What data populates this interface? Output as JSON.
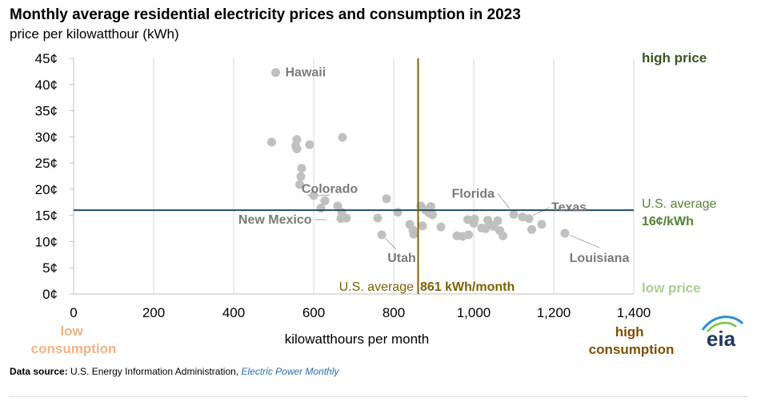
{
  "header": {
    "title": "Monthly average residential electricity prices and consumption in 2023",
    "subtitle": "price per kilowatthour (kWh)"
  },
  "source": {
    "label": "Data source:",
    "text": "U.S. Energy Information Administration,",
    "publication": "Electric Power Monthly"
  },
  "logo": {
    "text": "eia",
    "icon": "eia-logo"
  },
  "colors": {
    "points": "#c0c0c0",
    "label_text": "#7a7a7a",
    "avg_price_line": "#1f4e5f",
    "avg_consumption_line": "#7f6000",
    "high_price": "#375623",
    "us_avg_price_label": "#548235",
    "us_avg_price_value": "#548235",
    "low_price": "#a9d18e",
    "low_consumption": "#f4b183",
    "high_consumption": "#7f4f00"
  },
  "chart_data": {
    "type": "scatter",
    "title": "Monthly average residential electricity prices and consumption in 2023",
    "subtitle": "price per kilowatthour (kWh)",
    "xlabel": "kilowatthours per month",
    "ylabel": "",
    "xlim": [
      0,
      1400
    ],
    "ylim": [
      0,
      45
    ],
    "x_ticks": [
      "0",
      "200",
      "400",
      "600",
      "800",
      "1,000",
      "1,200",
      "1,400"
    ],
    "x_tick_values": [
      0,
      200,
      400,
      600,
      800,
      1000,
      1200,
      1400
    ],
    "y_ticks": [
      "0¢",
      "5¢",
      "10¢",
      "15¢",
      "20¢",
      "25¢",
      "30¢",
      "35¢",
      "40¢",
      "45¢"
    ],
    "y_tick_values": [
      0,
      5,
      10,
      15,
      20,
      25,
      30,
      35,
      40,
      45
    ],
    "grid": {
      "vertical": true,
      "horizontal": false
    },
    "points": [
      {
        "x": 505,
        "y": 42.3
      },
      {
        "x": 495,
        "y": 29.0
      },
      {
        "x": 558,
        "y": 29.5
      },
      {
        "x": 555,
        "y": 28.3
      },
      {
        "x": 558,
        "y": 27.7
      },
      {
        "x": 672,
        "y": 29.9
      },
      {
        "x": 590,
        "y": 28.5
      },
      {
        "x": 570,
        "y": 24.0
      },
      {
        "x": 568,
        "y": 22.4
      },
      {
        "x": 565,
        "y": 20.9
      },
      {
        "x": 600,
        "y": 18.8
      },
      {
        "x": 628,
        "y": 17.8
      },
      {
        "x": 618,
        "y": 16.4
      },
      {
        "x": 660,
        "y": 16.8
      },
      {
        "x": 670,
        "y": 15.6
      },
      {
        "x": 668,
        "y": 14.4
      },
      {
        "x": 682,
        "y": 14.5
      },
      {
        "x": 760,
        "y": 14.5
      },
      {
        "x": 782,
        "y": 18.2
      },
      {
        "x": 810,
        "y": 15.6
      },
      {
        "x": 770,
        "y": 11.3
      },
      {
        "x": 840,
        "y": 13.3
      },
      {
        "x": 848,
        "y": 12.2
      },
      {
        "x": 850,
        "y": 11.4
      },
      {
        "x": 868,
        "y": 16.8
      },
      {
        "x": 872,
        "y": 13.0
      },
      {
        "x": 880,
        "y": 16.0
      },
      {
        "x": 888,
        "y": 15.5
      },
      {
        "x": 893,
        "y": 16.7
      },
      {
        "x": 897,
        "y": 15.1
      },
      {
        "x": 918,
        "y": 12.8
      },
      {
        "x": 958,
        "y": 11.1
      },
      {
        "x": 972,
        "y": 11.0
      },
      {
        "x": 985,
        "y": 14.2
      },
      {
        "x": 987,
        "y": 11.3
      },
      {
        "x": 1000,
        "y": 13.5
      },
      {
        "x": 1002,
        "y": 14.3
      },
      {
        "x": 1020,
        "y": 12.6
      },
      {
        "x": 1030,
        "y": 12.5
      },
      {
        "x": 1035,
        "y": 14.1
      },
      {
        "x": 1042,
        "y": 13.2
      },
      {
        "x": 1050,
        "y": 12.9
      },
      {
        "x": 1060,
        "y": 14.0
      },
      {
        "x": 1065,
        "y": 12.1
      },
      {
        "x": 1073,
        "y": 11.1
      },
      {
        "x": 1100,
        "y": 15.2
      },
      {
        "x": 1122,
        "y": 14.7
      },
      {
        "x": 1138,
        "y": 14.4
      },
      {
        "x": 1145,
        "y": 12.3
      },
      {
        "x": 1170,
        "y": 13.3
      },
      {
        "x": 1228,
        "y": 11.6
      }
    ],
    "labels": [
      {
        "text": "Hawaii",
        "x": 505,
        "y": 42.3
      },
      {
        "text": "Colorado",
        "x": 640,
        "y": 15.8
      },
      {
        "text": "New Mexico",
        "x": 655,
        "y": 14.2
      },
      {
        "text": "Utah",
        "x": 770,
        "y": 11.3
      },
      {
        "text": "Florida",
        "x": 1100,
        "y": 15.2
      },
      {
        "text": "Texas",
        "x": 1138,
        "y": 14.4
      },
      {
        "text": "Louisiana",
        "x": 1228,
        "y": 11.6
      }
    ],
    "reference_lines": {
      "avg_price": {
        "value": 16,
        "label": "U.S. average",
        "value_label": "16¢/kWh"
      },
      "avg_consumption": {
        "value": 861,
        "label_prefix": "U.S. average",
        "label_value": "861 kWh/month"
      }
    },
    "annotations": {
      "high_price": "high price",
      "low_price": "low price",
      "low_consumption": "low consumption",
      "high_consumption": "high consumption"
    }
  }
}
